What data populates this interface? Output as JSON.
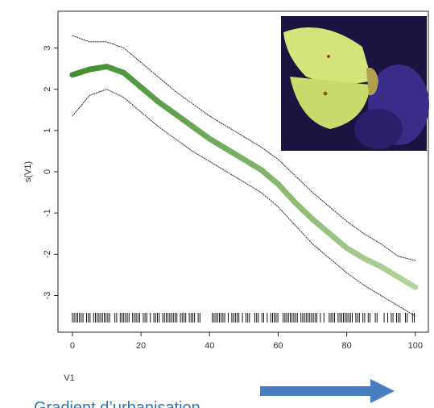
{
  "chart_data": {
    "type": "line",
    "x_label": "V1",
    "y_label": "s(V1)",
    "x": [
      0,
      5,
      10,
      15,
      20,
      25,
      30,
      35,
      40,
      45,
      50,
      55,
      60,
      65,
      70,
      75,
      80,
      85,
      90,
      95,
      100
    ],
    "series": [
      {
        "color": "#3f8d2f",
        "color_end": "#b5d59c",
        "width": 7,
        "style": "solid",
        "values": [
          2.35,
          2.48,
          2.55,
          2.4,
          2.05,
          1.7,
          1.4,
          1.1,
          0.8,
          0.55,
          0.3,
          0.05,
          -0.3,
          -0.75,
          -1.15,
          -1.5,
          -1.85,
          -2.1,
          -2.3,
          -2.55,
          -2.8
        ]
      },
      {
        "color": "#333333",
        "width": 1,
        "style": "dotted",
        "values": [
          3.3,
          3.15,
          3.15,
          3.0,
          2.65,
          2.3,
          1.95,
          1.65,
          1.35,
          1.1,
          0.85,
          0.6,
          0.3,
          -0.1,
          -0.5,
          -0.85,
          -1.2,
          -1.5,
          -1.75,
          -2.05,
          -2.15
        ]
      },
      {
        "color": "#333333",
        "width": 1,
        "style": "dotted",
        "values": [
          1.35,
          1.85,
          2.0,
          1.8,
          1.45,
          1.1,
          0.8,
          0.5,
          0.25,
          0.0,
          -0.25,
          -0.5,
          -0.85,
          -1.3,
          -1.75,
          -2.1,
          -2.45,
          -2.75,
          -3.0,
          -3.25,
          -3.5
        ]
      }
    ],
    "xlim": [
      -4.2,
      103.8
    ],
    "ylim": [
      -3.89,
      3.89
    ],
    "xticks": [
      0,
      20,
      40,
      60,
      80,
      100
    ],
    "yticks": [
      -3,
      -2,
      -1,
      0,
      1,
      2,
      3
    ],
    "annotation": "Gradient d’urbanisation"
  }
}
